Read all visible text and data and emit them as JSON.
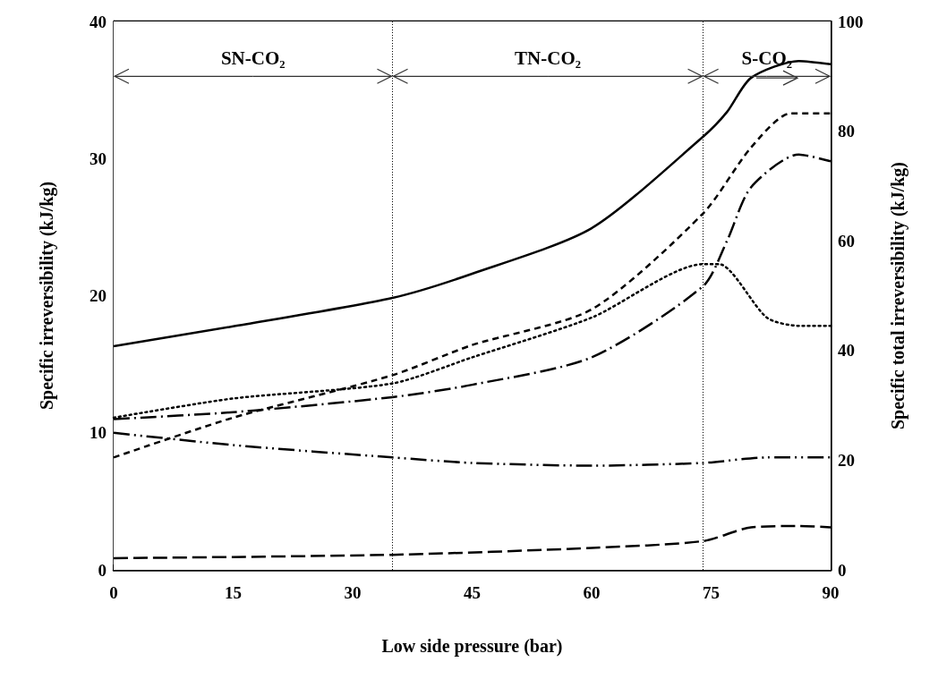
{
  "chart_data": {
    "type": "line",
    "xlabel": "Low side pressure (bar)",
    "ylabel": "Specific irreversibility (kJ/kg)",
    "y2label": "Specific total irreversibility (kJ/kg)",
    "xlim": [
      0,
      90
    ],
    "xticks": [
      0,
      15,
      30,
      45,
      60,
      75,
      90
    ],
    "ylim": [
      0,
      40
    ],
    "yticks": [
      0,
      10,
      20,
      30,
      40
    ],
    "y2lim": [
      0,
      100
    ],
    "y2ticks": [
      0,
      20,
      40,
      60,
      80,
      100
    ],
    "grid": false,
    "marker": "none",
    "series": [
      {
        "color": "#000000",
        "axis": "y2",
        "line_style": "solid",
        "x": [
          0,
          15,
          35,
          45,
          60,
          74,
          77,
          80,
          86,
          90
        ],
        "values": [
          40.8,
          44.4,
          49.6,
          54,
          62.3,
          79,
          83.5,
          89.7,
          92.8,
          92.2
        ]
      },
      {
        "color": "#000000",
        "line_style": "dashed",
        "x": [
          0,
          15,
          35,
          45,
          60,
          74,
          80,
          85,
          90
        ],
        "values": [
          8.2,
          11.1,
          14.2,
          16.4,
          19,
          26,
          30.8,
          33.3,
          33.3
        ]
      },
      {
        "color": "#000000",
        "line_style": "dotted",
        "x": [
          0,
          15,
          35,
          45,
          60,
          74,
          76,
          82,
          86,
          90
        ],
        "values": [
          11.1,
          12.5,
          13.6,
          15.5,
          18.4,
          22.3,
          22.3,
          18.4,
          17.8,
          17.8
        ]
      },
      {
        "color": "#000000",
        "line_style": "dashed",
        "x": [
          0,
          15,
          35,
          45,
          60,
          74,
          77,
          80,
          86,
          90
        ],
        "values": [
          11,
          11.5,
          12.6,
          13.5,
          15.5,
          20.7,
          24,
          27.9,
          30.3,
          29.8
        ]
      },
      {
        "color": "#000000",
        "line_style": "dashed",
        "x": [
          0,
          15,
          35,
          45,
          60,
          74,
          82,
          90
        ],
        "values": [
          10,
          9.1,
          8.2,
          7.8,
          7.6,
          7.8,
          8.2,
          8.2
        ]
      },
      {
        "color": "#000000",
        "line_style": "dashed",
        "x": [
          0,
          35,
          60,
          74,
          80,
          86,
          90
        ],
        "values": [
          0.85,
          1.1,
          1.6,
          2.1,
          3.1,
          3.2,
          3.1
        ]
      }
    ],
    "ref_lines": [
      {
        "axis": "x",
        "value": 35,
        "line_style": "dotted",
        "color": "#000000"
      },
      {
        "axis": "x",
        "value": 74,
        "line_style": "dotted",
        "color": "#000000"
      }
    ],
    "bands": [
      {
        "axis": "x",
        "from": 0,
        "to": 35,
        "label": "SN-CO₂",
        "color": "#ffffff"
      },
      {
        "axis": "x",
        "from": 35,
        "to": 74,
        "label": "TN-CO₂",
        "color": "#ffffff"
      },
      {
        "axis": "x",
        "from": 74,
        "to": 90,
        "label": "S-CO₂",
        "color": "#ffffff"
      }
    ]
  }
}
